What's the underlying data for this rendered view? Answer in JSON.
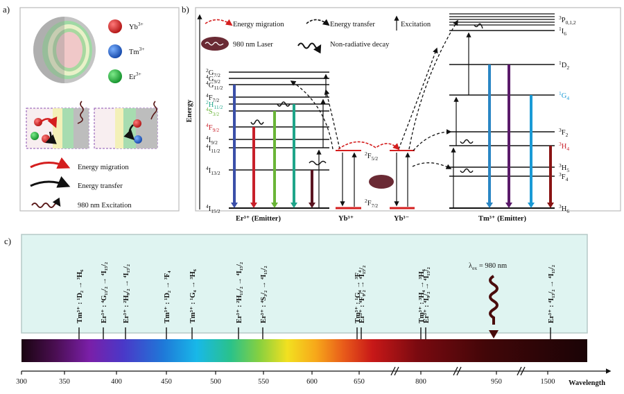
{
  "panel_a": {
    "label": "a)",
    "ions": [
      {
        "label": "Yb",
        "sup": "3+",
        "color": "#c81e1e"
      },
      {
        "label": "Tm",
        "sup": "3+",
        "color": "#1f5fbf"
      },
      {
        "label": "Er",
        "sup": "3+",
        "color": "#1fa83a"
      }
    ],
    "legend": [
      {
        "text": "Energy migration",
        "icon": "red-arrow-icon"
      },
      {
        "text": "Energy transfer",
        "icon": "black-arrow-icon"
      },
      {
        "text": "980 nm Excitation",
        "icon": "wavy-arrow-icon"
      }
    ]
  },
  "panel_b": {
    "label": "b)",
    "legend": {
      "migration": "Energy migration",
      "transfer": "Energy transfer",
      "excitation": "Excitation",
      "laser": "980 nm Laser",
      "nonrad": "Non-radiative decay"
    },
    "axis_label": "Energy",
    "er_levels": [
      {
        "name": "2G",
        "sub": "7/2",
        "color": "#111"
      },
      {
        "name": "4G",
        "sub": "9/2",
        "color": "#111"
      },
      {
        "name": "4G",
        "sub": "11/2",
        "color": "#111"
      },
      {
        "name": "4F",
        "sub": "7/2",
        "color": "#111"
      },
      {
        "name": "2H",
        "sub": "11/2",
        "color": "#1fa58a"
      },
      {
        "name": "4S",
        "sub": "3/2",
        "color": "#6ab537"
      },
      {
        "name": "4F",
        "sub": "9/2",
        "color": "#c8202a"
      },
      {
        "name": "4I",
        "sub": "9/2",
        "color": "#111"
      },
      {
        "name": "4I",
        "sub": "11/2",
        "color": "#111"
      },
      {
        "name": "4I",
        "sub": "13/2",
        "color": "#111"
      },
      {
        "name": "4I",
        "sub": "15/2",
        "color": "#111"
      }
    ],
    "yb_levels": [
      {
        "name": "2F",
        "sub": "5/2"
      },
      {
        "name": "2F",
        "sub": "7/2"
      }
    ],
    "tm_levels": [
      {
        "name": "3P",
        "sub": "0,1,2",
        "color": "#111"
      },
      {
        "name": "1I",
        "sub": "6",
        "color": "#111"
      },
      {
        "name": "1D",
        "sub": "2",
        "color": "#111"
      },
      {
        "name": "1G",
        "sub": "4",
        "color": "#1a9ad6"
      },
      {
        "name": "3F",
        "sub": "2",
        "color": "#111"
      },
      {
        "name": "3H",
        "sub": "4",
        "color": "#c8202a"
      },
      {
        "name": "3H",
        "sub": "5",
        "color": "#111"
      },
      {
        "name": "3F",
        "sub": "4",
        "color": "#111"
      },
      {
        "name": "3H",
        "sub": "6",
        "color": "#111"
      }
    ],
    "bottom_labels": {
      "er": "Er³⁺ (Emitter)",
      "yb1": "Yb³⁺",
      "yb2": "Yb³⁻",
      "tm": "Tm³⁺ (Emitter)"
    }
  },
  "panel_c": {
    "label": "c)",
    "emissions": [
      {
        "ion": "Tm³⁺",
        "transition": "¹D₂ → ³H₆",
        "wavelength": 360
      },
      {
        "ion": "Er³⁺",
        "transition": "⁴G₁₁/₂ → ⁴I₁₅/₂",
        "wavelength": 385
      },
      {
        "ion": "Er³⁺",
        "transition": "²H₉/₂ → ⁴I₁₅/₂",
        "wavelength": 408
      },
      {
        "ion": "Tm³⁺",
        "transition": "¹D₂ → ³F₄",
        "wavelength": 450
      },
      {
        "ion": "Tm³⁺",
        "transition": "¹G₄ → ³H₆",
        "wavelength": 477
      },
      {
        "ion": "Er³⁺",
        "transition": "²H₁₁/₂ → ⁴I₁₅/₂",
        "wavelength": 525
      },
      {
        "ion": "Er³⁺",
        "transition": "⁴S₃/₂ → ⁴I₁₅/₂",
        "wavelength": 550
      },
      {
        "ion": "Tm³⁺",
        "transition": "¹G₄ → ³F₄",
        "wavelength": 648
      },
      {
        "ion": "Er³⁺",
        "transition": "⁴F₉/₂ → ⁴I₁₅/₂",
        "wavelength": 655
      },
      {
        "ion": "Tm³⁺",
        "transition": "³H₄ → ³H₆",
        "wavelength": 800
      },
      {
        "ion": "Er³⁺",
        "transition": "⁴I₉/₂ → ⁴I₁₅/₂",
        "wavelength": 810
      },
      {
        "ion": "Er³⁺",
        "transition": "⁴I₁₃/₂ → ⁴I₁₅/₂",
        "wavelength": 1530
      }
    ],
    "excitation": "λ",
    "excitation_sub": "ex",
    "excitation_value": " = 980 nm",
    "axis_ticks": [
      "300",
      "350",
      "400",
      "450",
      "500",
      "550",
      "600",
      "650",
      "800",
      "950",
      "1500"
    ],
    "axis_title": "Wavelength"
  }
}
